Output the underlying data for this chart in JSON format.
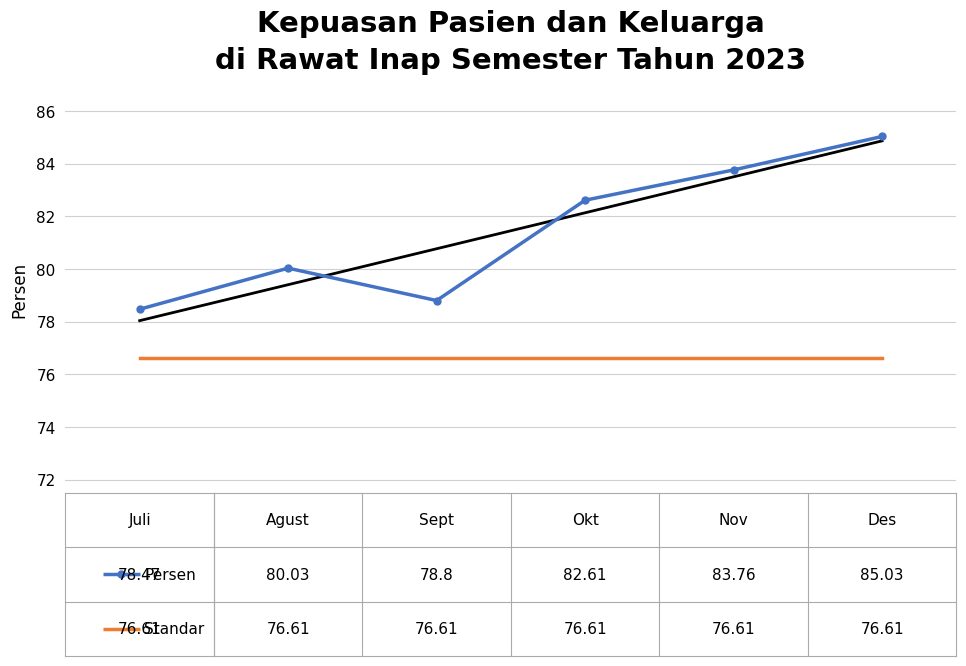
{
  "title": "Kepuasan Pasien dan Keluarga\ndi Rawat Inap Semester Tahun 2023",
  "title_fontsize": 21,
  "ylabel": "Persen",
  "ylabel_fontsize": 12,
  "months": [
    "Juli",
    "Agust",
    "Sept",
    "Okt",
    "Nov",
    "Des"
  ],
  "persen_values": [
    78.47,
    80.03,
    78.8,
    82.61,
    83.76,
    85.03
  ],
  "standar_values": [
    76.61,
    76.61,
    76.61,
    76.61,
    76.61,
    76.61
  ],
  "persen_color": "#4472C4",
  "standar_color": "#ED7D31",
  "trend_color": "#000000",
  "ylim": [
    71.5,
    87
  ],
  "yticks": [
    72,
    74,
    76,
    78,
    80,
    82,
    84,
    86
  ],
  "background_color": "#FFFFFF",
  "legend_persen_label": "Persen",
  "legend_standar_label": "Standar",
  "grid_color": "#D0D0D0",
  "table_line_color": "#AAAAAA"
}
